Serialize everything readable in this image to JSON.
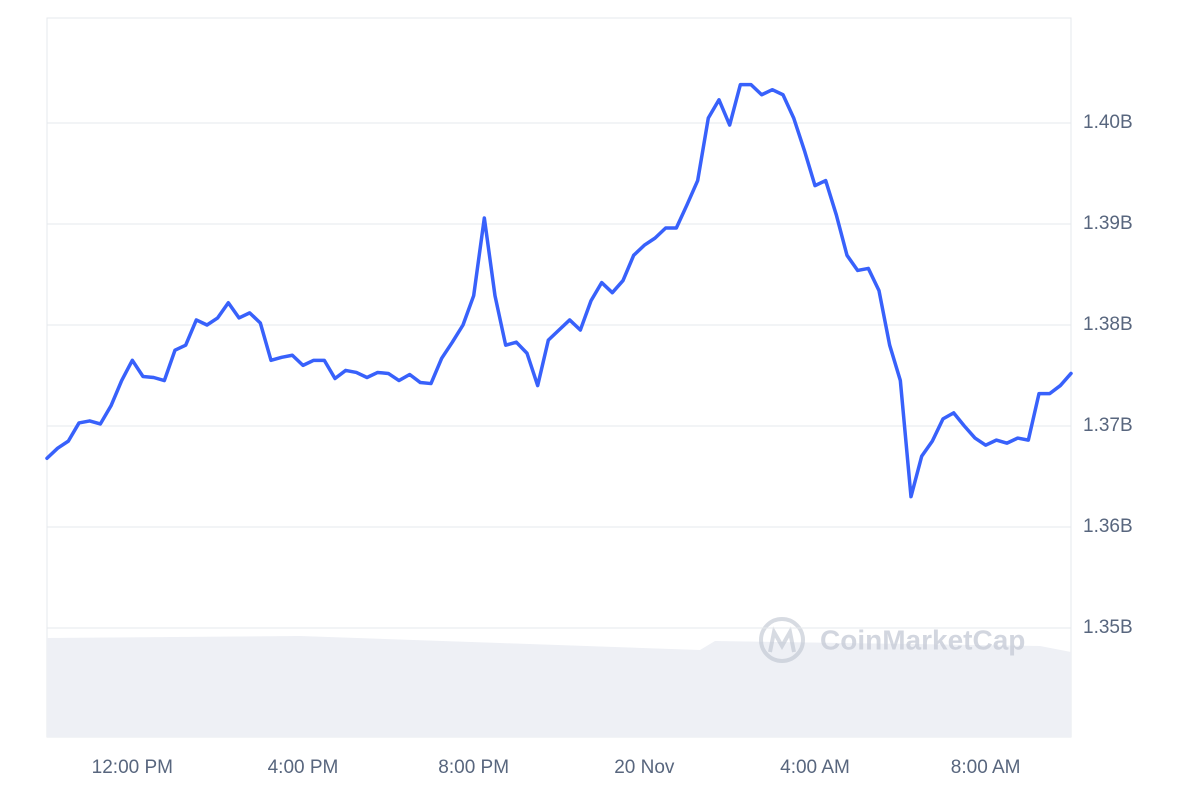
{
  "chart_data": {
    "type": "line",
    "categories": [
      null,
      null,
      null,
      null,
      null,
      null,
      null,
      null,
      "12:00 PM",
      null,
      null,
      null,
      null,
      null,
      null,
      null,
      null,
      null,
      null,
      null,
      null,
      null,
      null,
      null,
      "4:00 PM",
      null,
      null,
      null,
      null,
      null,
      null,
      null,
      null,
      null,
      null,
      null,
      null,
      null,
      null,
      null,
      "8:00 PM",
      null,
      null,
      null,
      null,
      null,
      null,
      null,
      null,
      null,
      null,
      null,
      null,
      null,
      null,
      null,
      "20 Nov",
      null,
      null,
      null,
      null,
      null,
      null,
      null,
      null,
      null,
      null,
      null,
      null,
      null,
      null,
      null,
      "4:00 AM",
      null,
      null,
      null,
      null,
      null,
      null,
      null,
      null,
      null,
      null,
      null,
      null,
      null,
      null,
      null,
      "8:00 AM",
      null,
      null,
      null,
      null,
      null,
      null,
      null,
      null
    ],
    "values": [
      1.3668,
      1.3678,
      1.3685,
      1.3703,
      1.3705,
      1.3702,
      1.372,
      1.3745,
      1.3765,
      1.3749,
      1.3748,
      1.3745,
      1.3775,
      1.378,
      1.3805,
      1.38,
      1.3807,
      1.3822,
      1.3807,
      1.3812,
      1.3802,
      1.3765,
      1.3768,
      1.377,
      1.376,
      1.3765,
      1.3765,
      1.3747,
      1.3755,
      1.3753,
      1.3748,
      1.3753,
      1.3752,
      1.3745,
      1.3751,
      1.3743,
      1.3742,
      1.3767,
      1.3783,
      1.38,
      1.3829,
      1.3906,
      1.3829,
      1.378,
      1.3783,
      1.3772,
      1.374,
      1.3785,
      1.3795,
      1.3805,
      1.3795,
      1.3824,
      1.3842,
      1.3832,
      1.3844,
      1.3869,
      1.3879,
      1.3886,
      1.3896,
      1.3896,
      1.3919,
      1.3943,
      1.4005,
      1.4023,
      1.3998,
      1.4038,
      1.4038,
      1.4028,
      1.4033,
      1.4028,
      1.4005,
      1.3973,
      1.3938,
      1.3943,
      1.3909,
      1.3869,
      1.3854,
      1.3856,
      1.3834,
      1.378,
      1.3745,
      1.363,
      1.367,
      1.3685,
      1.3707,
      1.3713,
      1.37,
      1.3688,
      1.3681,
      1.3686,
      1.3683,
      1.3688,
      1.3686,
      1.3732,
      1.3732,
      1.374,
      1.3752
    ],
    "color": "#3861fb",
    "ylim": [
      1.3392,
      1.4104
    ],
    "yticks": [
      {
        "value": 1.35,
        "label": "1.35B"
      },
      {
        "value": 1.36,
        "label": "1.36B"
      },
      {
        "value": 1.37,
        "label": "1.37B"
      },
      {
        "value": 1.38,
        "label": "1.38B"
      },
      {
        "value": 1.39,
        "label": "1.39B"
      },
      {
        "value": 1.4,
        "label": "1.40B"
      }
    ],
    "grid": true,
    "watermark": "CoinMarketCap"
  }
}
